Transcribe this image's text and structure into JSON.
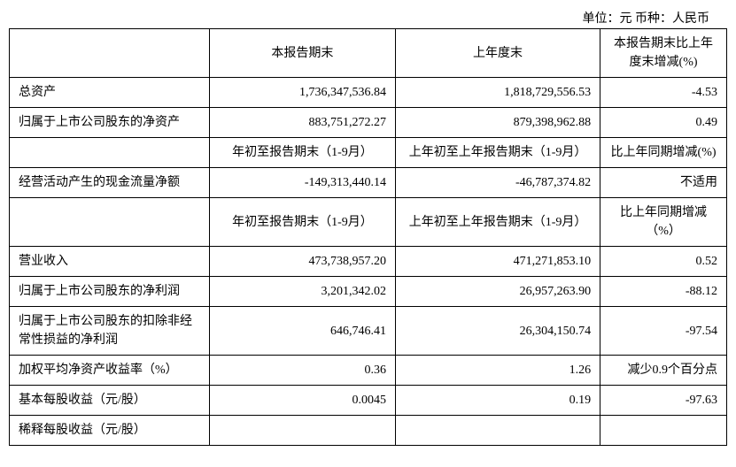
{
  "unit_line": "单位：元    币种：人民币",
  "headers": {
    "h1": "本报告期末",
    "h2": "上年度末",
    "h3": "本报告期末比上年度末增减(%)",
    "period1_a": "年初至报告期末（1-9月）",
    "period1_b": "上年初至上年报告期末（1-9月）",
    "period1_c": "比上年同期增减(%)",
    "period2_a": "年初至报告期末（1-9月）",
    "period2_b": "上年初至上年报告期末（1-9月）",
    "period2_c": "比上年同期增减（%）"
  },
  "rows": {
    "r1": {
      "label": "总资产",
      "v1": "1,736,347,536.84",
      "v2": "1,818,729,556.53",
      "v3": "-4.53"
    },
    "r2": {
      "label": "归属于上市公司股东的净资产",
      "v1": "883,751,272.27",
      "v2": "879,398,962.88",
      "v3": "0.49"
    },
    "r3": {
      "label": "经营活动产生的现金流量净额",
      "v1": "-149,313,440.14",
      "v2": "-46,787,374.82",
      "v3": "不适用"
    },
    "r4": {
      "label": "营业收入",
      "v1": "473,738,957.20",
      "v2": "471,271,853.10",
      "v3": "0.52"
    },
    "r5": {
      "label": "归属于上市公司股东的净利润",
      "v1": "3,201,342.02",
      "v2": "26,957,263.90",
      "v3": "-88.12"
    },
    "r6": {
      "label": "归属于上市公司股东的扣除非经常性损益的净利润",
      "v1": "646,746.41",
      "v2": "26,304,150.74",
      "v3": "-97.54"
    },
    "r7": {
      "label": "加权平均净资产收益率（%）",
      "v1": "0.36",
      "v2": "1.26",
      "v3": "减少0.9个百分点"
    },
    "r8": {
      "label": "基本每股收益（元/股）",
      "v1": "0.0045",
      "v2": "0.19",
      "v3": "-97.63"
    },
    "r9": {
      "label": "稀释每股收益（元/股）",
      "v1": "",
      "v2": "",
      "v3": ""
    }
  }
}
